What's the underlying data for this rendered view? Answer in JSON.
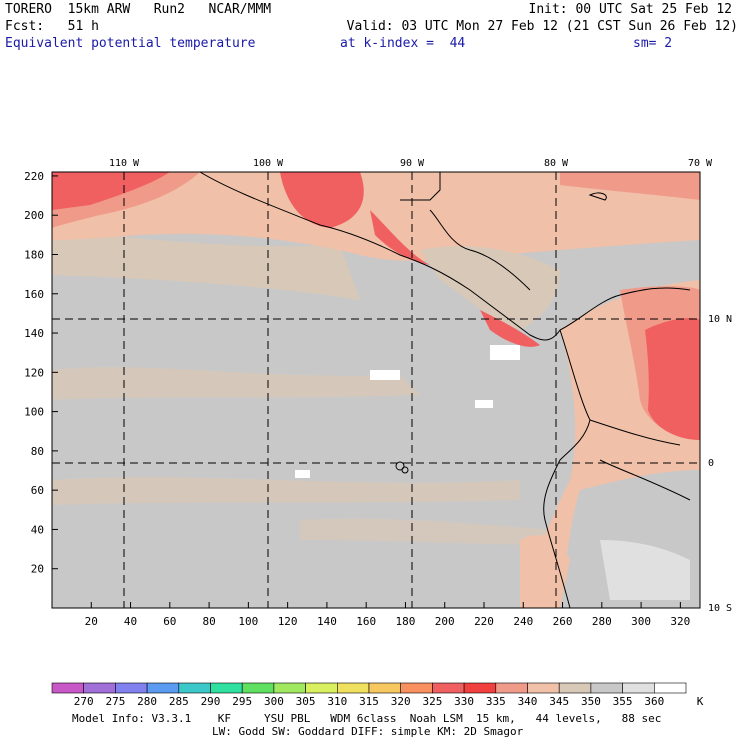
{
  "header": {
    "model": "TORERO  15km ARW   Run2   NCAR/MMM",
    "init": "Init: 00 UTC Sat 25 Feb 12",
    "fcst": "Fcst:   51 h",
    "valid": "Valid: 03 UTC Mon 27 Feb 12 (21 CST Sun 26 Feb 12)",
    "field": "Equivalent potential temperature",
    "level": "at k-index =  44",
    "smooth": "sm= 2"
  },
  "map": {
    "lon_labels": [
      "110 W",
      "100 W",
      "90 W",
      "80 W",
      "70 W"
    ],
    "lat_labels": [
      "10 N",
      "0",
      "10 S"
    ],
    "x_ticks": [
      "20",
      "40",
      "60",
      "80",
      "100",
      "120",
      "140",
      "160",
      "180",
      "200",
      "220",
      "240",
      "260",
      "280",
      "300",
      "320"
    ],
    "y_ticks": [
      "20",
      "40",
      "60",
      "80",
      "100",
      "120",
      "140",
      "160",
      "180",
      "200",
      "220"
    ]
  },
  "colorbar": {
    "values": [
      "270",
      "275",
      "280",
      "285",
      "290",
      "295",
      "300",
      "305",
      "310",
      "315",
      "320",
      "325",
      "330",
      "335",
      "340",
      "345",
      "350",
      "355",
      "360"
    ],
    "unit": "K",
    "colors": [
      "#c857c8",
      "#a070d8",
      "#8080ee",
      "#5a9af0",
      "#3cc8c8",
      "#30e0a0",
      "#60e060",
      "#a0e860",
      "#d8f060",
      "#f0e060",
      "#f8c860",
      "#f89060",
      "#f06060",
      "#f04040",
      "#f09a8a",
      "#f0c0a8",
      "#d8c8b8",
      "#c8c8c8",
      "#e0e0e0",
      "#ffffff"
    ]
  },
  "footer": {
    "line1": "Model Info: V3.3.1    KF     YSU PBL   WDM 6class  Noah LSM  15 km,   44 levels,   88 sec",
    "line2": "LW: Godd SW: Goddard DIFF: simple KM: 2D Smagor"
  }
}
